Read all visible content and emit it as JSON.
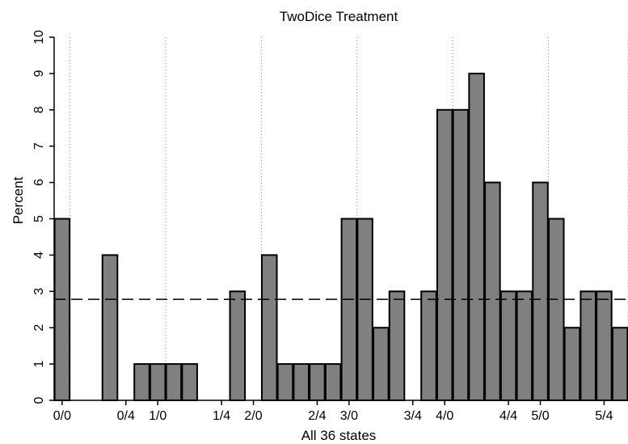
{
  "chart_data": {
    "type": "bar",
    "title": "TwoDice Treatment",
    "xlabel": "All 36 states",
    "ylabel": "Percent",
    "ylim": [
      0,
      10
    ],
    "yticks": [
      0,
      1,
      2,
      3,
      4,
      5,
      6,
      7,
      8,
      9,
      10
    ],
    "x_range": [
      -0.5,
      35.5
    ],
    "xticks": [
      {
        "label": "0/0",
        "pos": 0
      },
      {
        "label": "0/4",
        "pos": 4
      },
      {
        "label": "1/0",
        "pos": 6
      },
      {
        "label": "1/4",
        "pos": 10
      },
      {
        "label": "2/0",
        "pos": 12
      },
      {
        "label": "2/4",
        "pos": 16
      },
      {
        "label": "3/0",
        "pos": 18
      },
      {
        "label": "3/4",
        "pos": 22
      },
      {
        "label": "4/0",
        "pos": 24
      },
      {
        "label": "4/4",
        "pos": 28
      },
      {
        "label": "5/0",
        "pos": 30
      },
      {
        "label": "5/4",
        "pos": 34
      }
    ],
    "vlines_at": [
      0.5,
      6.5,
      12.5,
      18.5,
      24.5,
      30.5,
      35.5
    ],
    "reference_line": 2.78,
    "values": [
      5,
      0,
      0,
      4,
      0,
      1,
      1,
      1,
      1,
      0,
      0,
      3,
      0,
      4,
      1,
      1,
      1,
      1,
      5,
      5,
      2,
      3,
      0,
      3,
      8,
      8,
      9,
      6,
      3,
      3,
      6,
      5,
      2,
      3,
      3,
      2
    ],
    "bar_color": "#808080",
    "bar_edge_color": "#000000",
    "grid": false
  }
}
